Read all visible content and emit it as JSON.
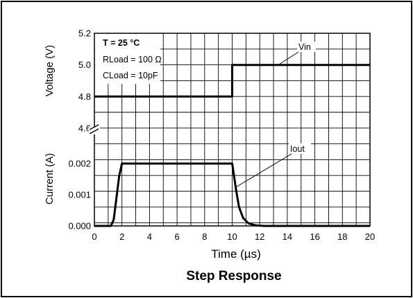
{
  "chart_data": {
    "type": "line",
    "title": "Step Response",
    "xlabel": "Time (µs)",
    "x_ticks": [
      "0",
      "2",
      "4",
      "6",
      "8",
      "10",
      "12",
      "14",
      "16",
      "18",
      "20"
    ],
    "xlim": [
      0,
      20
    ],
    "grid": true,
    "panels": [
      {
        "ylabel": "Voltage (V)",
        "ylim": [
          4.6,
          5.2
        ],
        "y_ticks": [
          "4.6",
          "4.8",
          "5.0",
          "5.2"
        ],
        "series": [
          {
            "name": "Vin",
            "x": [
              0,
              10,
              10,
              20
            ],
            "y": [
              4.8,
              4.8,
              5.0,
              5.0
            ]
          }
        ]
      },
      {
        "ylabel": "Current (A)",
        "ylim": [
          0,
          0.002
        ],
        "y_ticks": [
          "0.000",
          "0.001",
          "0.002"
        ],
        "series": [
          {
            "name": "Iout",
            "x": [
              0,
              1.2,
              1.4,
              1.6,
              1.8,
              1.95,
              2.0,
              10.0,
              10.1,
              10.3,
              10.5,
              10.8,
              11.2,
              11.7,
              12.3,
              20
            ],
            "y": [
              0,
              0,
              0.0002,
              0.0009,
              0.0016,
              0.0019,
              0.002,
              0.002,
              0.0017,
              0.0011,
              0.0006,
              0.00025,
              8e-05,
              2e-05,
              0,
              0
            ]
          }
        ]
      }
    ],
    "legend_lines": [
      "T = 25 °C",
      "RLoad = 100  Ω",
      "CLoad = 10pF"
    ],
    "legend_position": "top-left",
    "annotations": [
      "Vin",
      "Iout"
    ]
  }
}
